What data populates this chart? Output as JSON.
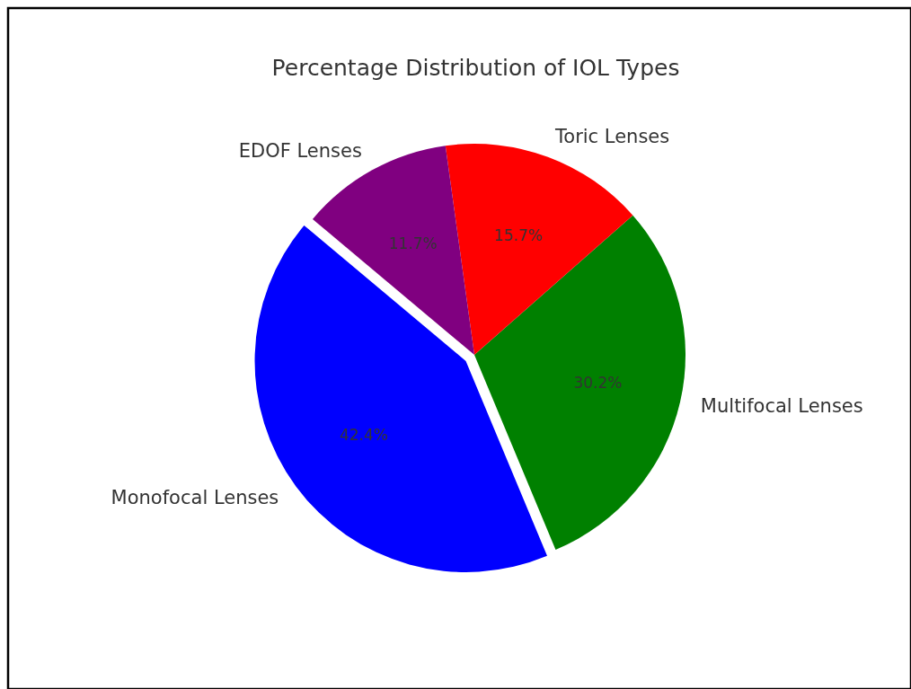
{
  "chart_data": {
    "type": "pie",
    "title": "Percentage Distribution of IOL Types",
    "categories": [
      "Monofocal Lenses",
      "Multifocal Lenses",
      "Toric Lenses",
      "EDOF Lenses"
    ],
    "values": [
      42.4,
      30.2,
      15.7,
      11.7
    ],
    "colors": [
      "#0000ff",
      "#008000",
      "#ff0000",
      "#800080"
    ],
    "value_labels": [
      "42.4%",
      "30.2%",
      "15.7%",
      "11.7%"
    ]
  }
}
